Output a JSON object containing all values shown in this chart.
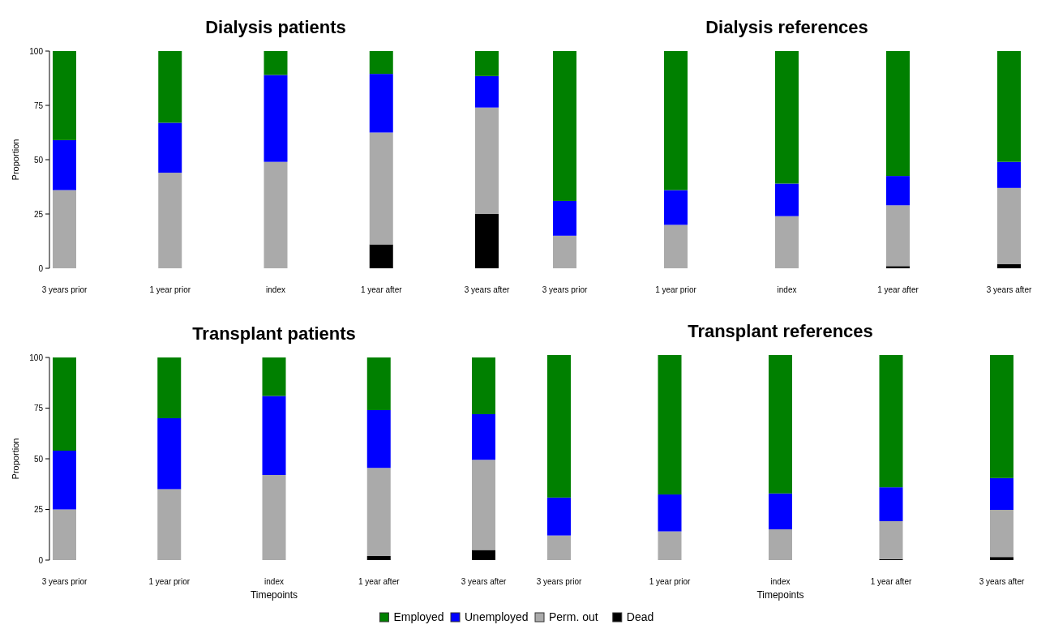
{
  "chart_data": [
    {
      "type": "bar",
      "stacked": true,
      "title": "Dialysis patients",
      "ylabel": "Proportion",
      "legend": "bottom",
      "categories": [
        "3 years prior",
        "1 year prior",
        "index",
        "1 year after",
        "3 years after"
      ],
      "ylim": [
        0,
        100
      ],
      "yticks": [
        0,
        25,
        50,
        75,
        100
      ],
      "series": [
        {
          "name": "Dead",
          "color": "#000000",
          "values": [
            0,
            0,
            0,
            11,
            25
          ]
        },
        {
          "name": "Perm. out",
          "color": "#aaaaaa",
          "values": [
            36,
            44,
            49,
            51.5,
            49
          ]
        },
        {
          "name": "Unemployed",
          "color": "#0000ff",
          "values": [
            23,
            23,
            40,
            27,
            14.5
          ]
        },
        {
          "name": "Employed",
          "color": "#008000",
          "values": [
            41,
            33,
            11,
            10.5,
            11.5
          ]
        }
      ]
    },
    {
      "type": "bar",
      "stacked": true,
      "title": "Dialysis references",
      "tick_labels": "x",
      "categories": [
        "3 years prior",
        "1 year prior",
        "index",
        "1 year after",
        "3 years after"
      ],
      "ylim": [
        0,
        100
      ],
      "series": [
        {
          "color": "#000000",
          "values": [
            0,
            0,
            0,
            1,
            2
          ]
        },
        {
          "color": "#aaaaaa",
          "values": [
            15,
            20,
            24,
            28,
            35
          ]
        },
        {
          "color": "#0000ff",
          "values": [
            16,
            16,
            15,
            13.5,
            12
          ]
        },
        {
          "color": "#008000",
          "values": [
            69,
            64,
            61,
            57.5,
            51
          ]
        }
      ]
    },
    {
      "type": "bar",
      "stacked": true,
      "title": "Transplant patients",
      "ylabel": "Proportion",
      "xlabel": "Timepoints",
      "categories": [
        "3 years prior",
        "1 year prior",
        "index",
        "1 year after",
        "3 years after"
      ],
      "ylim": [
        0,
        100
      ],
      "yticks": [
        0,
        25,
        50,
        75,
        100
      ],
      "series": [
        {
          "color": "#000000",
          "values": [
            0,
            0,
            0,
            2,
            5
          ]
        },
        {
          "color": "#aaaaaa",
          "values": [
            25,
            35,
            42,
            43.5,
            44.5
          ]
        },
        {
          "color": "#0000ff",
          "values": [
            29,
            35,
            39,
            28.5,
            22.5
          ]
        },
        {
          "color": "#008000",
          "values": [
            46,
            30,
            19,
            26,
            28
          ]
        }
      ]
    },
    {
      "type": "bar",
      "stacked": true,
      "title": "Transplant references",
      "xlabel": "Timepoints",
      "tick_labels": "x",
      "categories": [
        "3 years prior",
        "1 year prior",
        "index",
        "1 year after",
        "3 years after"
      ],
      "ylim": [
        0,
        100
      ],
      "series": [
        {
          "color": "#000000",
          "values": [
            0,
            0,
            0,
            0.5,
            1.5
          ]
        },
        {
          "color": "#aaaaaa",
          "values": [
            12,
            14,
            15,
            18.5,
            23
          ]
        },
        {
          "color": "#0000ff",
          "values": [
            18.5,
            18,
            17.5,
            16.5,
            15.5
          ]
        },
        {
          "color": "#008000",
          "values": [
            69.5,
            68,
            67.5,
            64.5,
            60
          ]
        }
      ]
    }
  ]
}
